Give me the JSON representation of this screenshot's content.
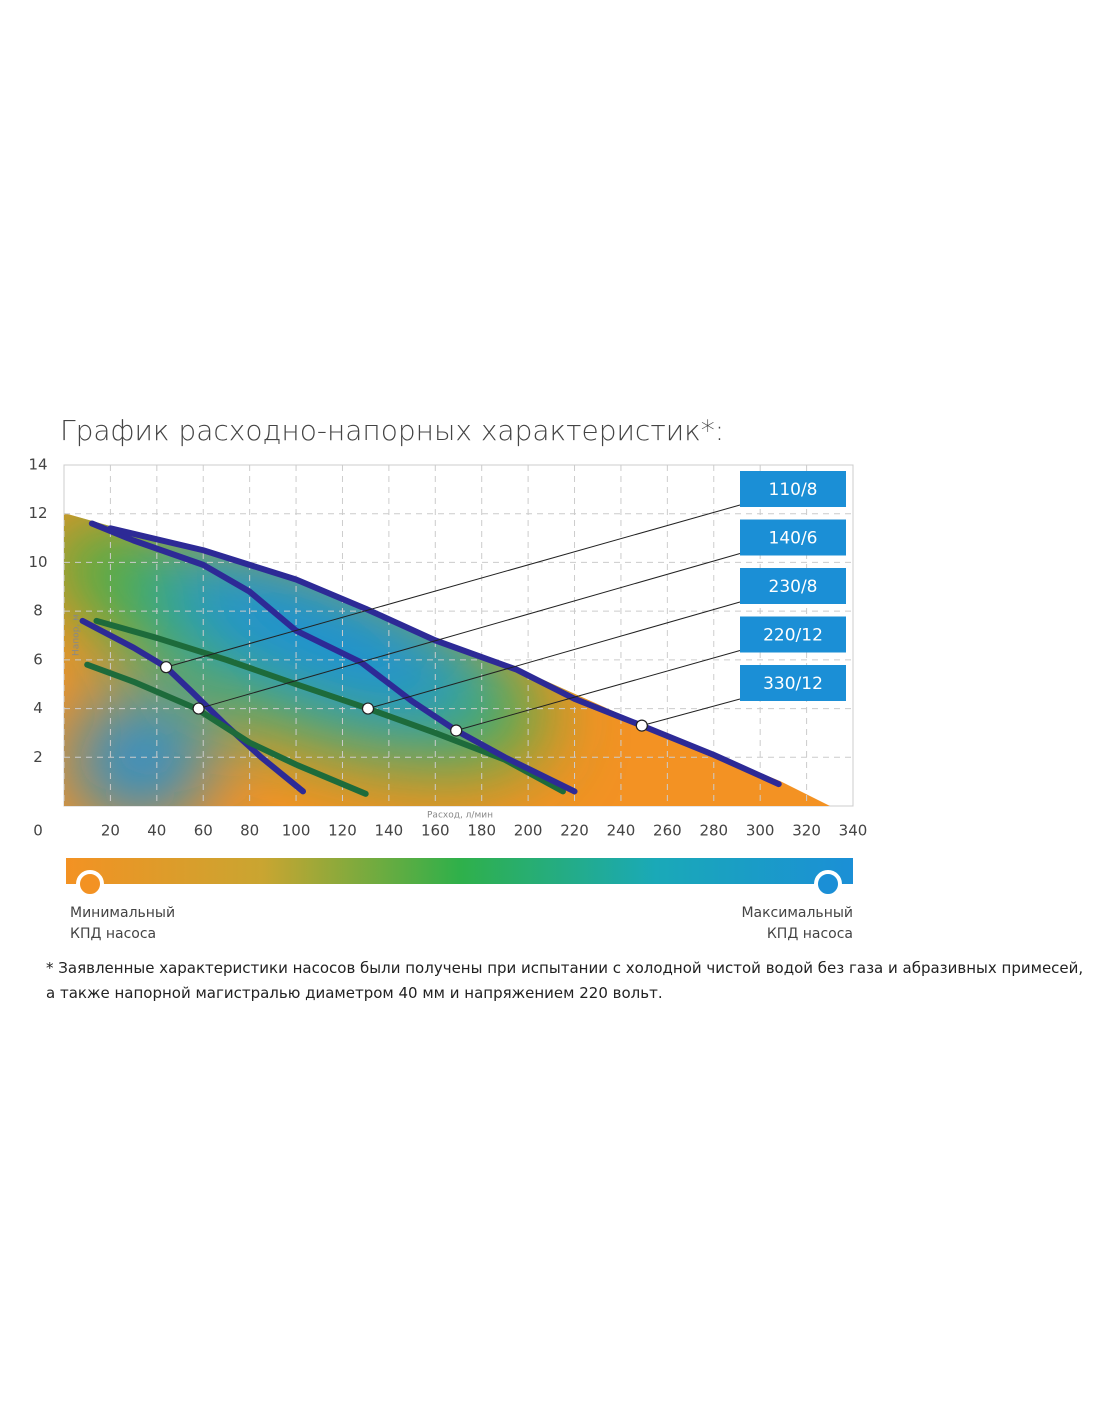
{
  "chart_data": {
    "type": "line",
    "title": "График расходно-напорных характеристик*:",
    "xlabel": "Расход, л/мин",
    "ylabel": "Напор, м",
    "xlim": [
      0,
      340
    ],
    "ylim": [
      0,
      14
    ],
    "xticks": [
      0,
      20,
      40,
      60,
      80,
      100,
      120,
      140,
      160,
      180,
      200,
      220,
      240,
      260,
      280,
      300,
      320,
      340
    ],
    "yticks": [
      2,
      4,
      6,
      8,
      10,
      12,
      14
    ],
    "grid": true,
    "series": [
      {
        "name": "110/8",
        "color": "#2d2a96",
        "x": [
          8,
          20,
          30,
          44,
          55,
          70,
          85,
          103
        ],
        "values": [
          7.6,
          7.0,
          6.5,
          5.7,
          4.7,
          3.3,
          2.0,
          0.6
        ],
        "nominal": {
          "x": 44,
          "y": 5.7
        }
      },
      {
        "name": "140/6",
        "color": "#1d6b3b",
        "x": [
          10,
          30,
          57,
          80,
          100,
          130
        ],
        "values": [
          5.8,
          5.1,
          4.0,
          2.6,
          1.7,
          0.5
        ],
        "nominal": {
          "x": 58,
          "y": 4.0
        }
      },
      {
        "name": "230/8",
        "color": "#1d6b3b",
        "x": [
          14,
          40,
          70,
          100,
          131,
          160,
          190,
          215
        ],
        "values": [
          7.6,
          6.9,
          6.0,
          5.0,
          4.0,
          3.0,
          1.9,
          0.6
        ],
        "nominal": {
          "x": 131,
          "y": 4.0
        }
      },
      {
        "name": "220/12",
        "color": "#2d2a96",
        "x": [
          12,
          30,
          60,
          80,
          100,
          128,
          150,
          169,
          190,
          220
        ],
        "values": [
          11.6,
          10.9,
          9.9,
          8.8,
          7.2,
          5.9,
          4.3,
          3.1,
          2.0,
          0.6
        ],
        "nominal": {
          "x": 169,
          "y": 3.1
        }
      },
      {
        "name": "330/12",
        "color": "#2d2a96",
        "x": [
          20,
          60,
          100,
          130,
          160,
          195,
          220,
          249,
          280,
          308
        ],
        "values": [
          11.4,
          10.5,
          9.3,
          8.1,
          6.8,
          5.6,
          4.4,
          3.3,
          2.1,
          0.9
        ],
        "nominal": {
          "x": 249,
          "y": 3.3
        }
      }
    ],
    "colorbar": {
      "min_label": [
        "Минимальный",
        "КПД насоса"
      ],
      "max_label": [
        "Максимальный",
        "КПД насоса"
      ]
    },
    "footnote": "* Заявленные характеристики насосов были получены при испытании с холодной чистой водой без газа и абразивных примесей, а также напорной магистралью диаметром 40 мм и напряжением 220 вольт."
  }
}
